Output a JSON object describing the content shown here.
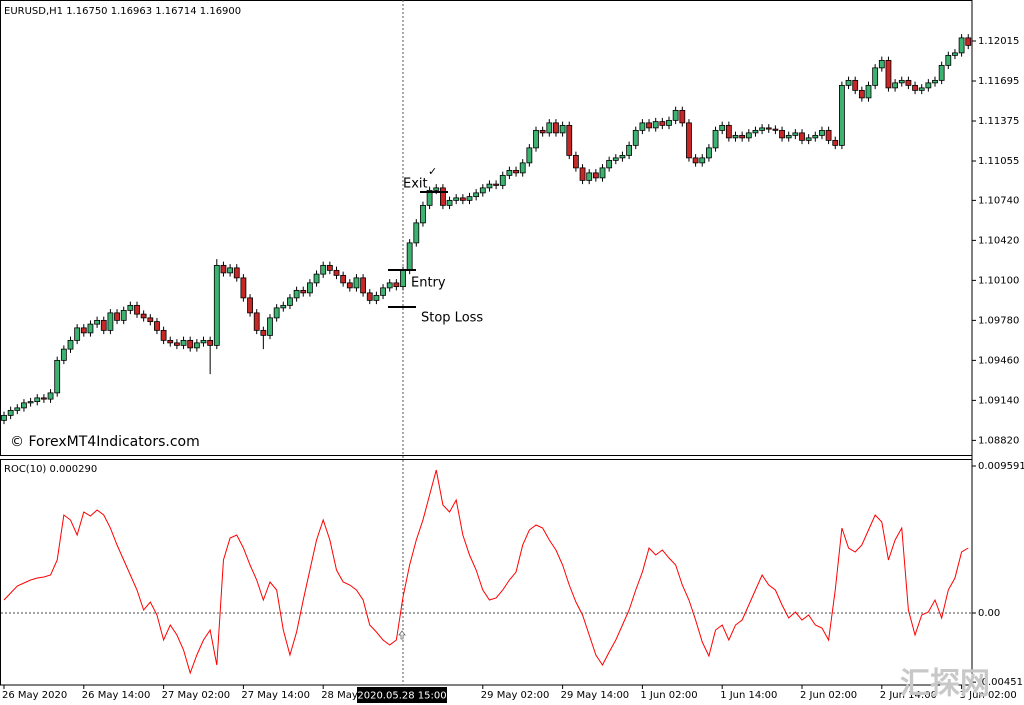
{
  "chart_data": [
    {
      "type": "candlestick",
      "title": "EURUSD,H1  1.16750 1.16963 1.16714 1.16900",
      "watermark": "© ForexMT4Indicators.com",
      "watermark2": "汇探网",
      "crosshair_label": "2020.05.28 15:00",
      "annotations": [
        "Exit",
        "✓",
        "Entry",
        "Stop Loss"
      ],
      "up_color": "#3cb371",
      "down_color": "#c62828",
      "ylim": [
        1.08703,
        1.12319
      ],
      "yticks": [
        1.12015,
        1.11695,
        1.11375,
        1.11055,
        {
          "value": 1.1074,
          "label": "1.10740"
        },
        {
          "value": 1.1042,
          "label": "1.10420"
        },
        {
          "value": 1.101,
          "label": "1.10100"
        },
        {
          "value": 1.0978,
          "label": "1.09780"
        },
        {
          "value": 1.0946,
          "label": "1.09460"
        },
        {
          "value": 1.0914,
          "label": "1.09140"
        },
        {
          "value": 1.0882,
          "label": "1.08820"
        }
      ],
      "categories": [
        "26 May 2020",
        null,
        null,
        null,
        null,
        null,
        null,
        null,
        null,
        null,
        null,
        null,
        "26 May 14:00",
        null,
        null,
        null,
        null,
        null,
        null,
        null,
        null,
        null,
        null,
        null,
        "27 May 02:00",
        null,
        null,
        null,
        null,
        null,
        null,
        null,
        null,
        null,
        null,
        null,
        "27 May 14:00",
        null,
        null,
        null,
        null,
        null,
        null,
        null,
        null,
        null,
        null,
        null,
        "28 May 02:00",
        null,
        null,
        null,
        null,
        null,
        null,
        null,
        null,
        null,
        null,
        null,
        null,
        null,
        null,
        null,
        null,
        null,
        null,
        null,
        null,
        null,
        null,
        null,
        "29 May 02:00",
        null,
        null,
        null,
        null,
        null,
        null,
        null,
        null,
        null,
        null,
        null,
        "29 May 14:00",
        null,
        null,
        null,
        null,
        null,
        null,
        null,
        null,
        null,
        null,
        null,
        "1 Jun 02:00",
        null,
        null,
        null,
        null,
        null,
        null,
        null,
        null,
        null,
        null,
        null,
        "1 Jun 14:00",
        null,
        null,
        null,
        null,
        null,
        null,
        null,
        null,
        null,
        null,
        null,
        "2 Jun 02:00",
        null,
        null,
        null,
        null,
        null,
        null,
        null,
        null,
        null,
        null,
        null,
        "2 Jun 14:00",
        null,
        null,
        null,
        null,
        null,
        null,
        null,
        null,
        null,
        null,
        null,
        "3 Jun 02:00",
        null
      ],
      "open": [
        1.0898,
        1.0902,
        1.0906,
        1.0908,
        1.0912,
        1.0913,
        1.0916,
        1.0915,
        1.092,
        1.0946,
        1.0955,
        1.0962,
        1.0972,
        1.0968,
        1.0975,
        1.0978,
        1.097,
        1.0984,
        1.0978,
        1.0986,
        1.099,
        1.0983,
        1.098,
        1.0977,
        1.097,
        1.0962,
        1.096,
        1.0958,
        1.0962,
        1.0956,
        1.096,
        1.0962,
        1.0958,
        1.1022,
        1.1016,
        1.102,
        1.1012,
        1.0996,
        1.0984,
        1.097,
        1.0966,
        1.098,
        1.0988,
        1.099,
        1.0996,
        1.1002,
        1.1,
        1.1008,
        1.1015,
        1.1022,
        1.1018,
        1.1014,
        1.1008,
        1.1004,
        1.1012,
        1.1,
        1.0994,
        1.0998,
        1.1004,
        1.1008,
        1.1005,
        1.1018,
        1.104,
        1.1056,
        1.107,
        1.1082,
        1.1084,
        1.107,
        1.1074,
        1.1076,
        1.1074,
        1.1077,
        1.108,
        1.1084,
        1.1087,
        1.1086,
        1.1094,
        1.1098,
        1.1096,
        1.1104,
        1.1116,
        1.113,
        1.1128,
        1.1136,
        1.1128,
        1.1134,
        1.111,
        1.11,
        1.109,
        1.1096,
        1.1092,
        1.11,
        1.1106,
        1.1108,
        1.111,
        1.1118,
        1.113,
        1.1136,
        1.1132,
        1.1137,
        1.1134,
        1.1138,
        1.1146,
        1.1136,
        1.1108,
        1.1104,
        1.1108,
        1.1116,
        1.113,
        1.1134,
        1.1124,
        1.1126,
        1.1124,
        1.1128,
        1.113,
        1.1132,
        1.1131,
        1.113,
        1.1124,
        1.1126,
        1.1128,
        1.1122,
        1.1124,
        1.1126,
        1.113,
        1.1122,
        1.1118,
        1.1166,
        1.117,
        1.1162,
        1.1156,
        1.1166,
        1.118,
        1.1186,
        1.1164,
        1.1168,
        1.117,
        1.1166,
        1.1162,
        1.1164,
        1.1168,
        1.117,
        1.1182,
        1.119,
        1.1192,
        1.1204
      ],
      "high": [
        1.0905,
        1.0909,
        1.0911,
        1.0915,
        1.0916,
        1.0919,
        1.0919,
        1.0923,
        1.0949,
        1.0958,
        1.0965,
        1.0975,
        1.0975,
        1.0978,
        1.0981,
        1.0981,
        1.0987,
        1.0987,
        1.0989,
        1.0993,
        1.0993,
        1.0986,
        1.0983,
        1.098,
        1.0973,
        1.0965,
        1.0963,
        1.0965,
        1.0965,
        1.0963,
        1.0965,
        1.0965,
        1.1027,
        1.1025,
        1.1023,
        1.1023,
        1.1015,
        1.0999,
        1.0987,
        1.0973,
        1.0983,
        1.0991,
        1.0993,
        1.0999,
        1.1005,
        1.1005,
        1.1011,
        1.1018,
        1.1025,
        1.1025,
        1.1021,
        1.1017,
        1.1011,
        1.1015,
        1.1015,
        1.1003,
        1.1001,
        1.1007,
        1.1011,
        1.1011,
        1.1021,
        1.1043,
        1.1059,
        1.1073,
        1.1085,
        1.1087,
        1.1087,
        1.1077,
        1.1079,
        1.1079,
        1.108,
        1.1083,
        1.1087,
        1.109,
        1.109,
        1.1097,
        1.1101,
        1.1101,
        1.1107,
        1.1119,
        1.1133,
        1.1133,
        1.1139,
        1.1139,
        1.1137,
        1.1137,
        1.1113,
        1.1103,
        1.1099,
        1.1099,
        1.1103,
        1.1109,
        1.1111,
        1.1113,
        1.1121,
        1.1133,
        1.1139,
        1.1139,
        1.114,
        1.114,
        1.1141,
        1.1149,
        1.1149,
        1.1139,
        1.1111,
        1.1111,
        1.1119,
        1.1133,
        1.1137,
        1.1137,
        1.1129,
        1.1129,
        1.1131,
        1.1133,
        1.1135,
        1.1135,
        1.1134,
        1.1133,
        1.1129,
        1.1131,
        1.1131,
        1.1127,
        1.1129,
        1.1133,
        1.1133,
        1.1125,
        1.1169,
        1.1173,
        1.1173,
        1.1165,
        1.1169,
        1.1183,
        1.1189,
        1.1189,
        1.1171,
        1.1173,
        1.1173,
        1.1169,
        1.1167,
        1.1171,
        1.1173,
        1.1185,
        1.1193,
        1.1195,
        1.1207,
        1.1207
      ],
      "low": [
        1.0895,
        1.0899,
        1.0903,
        1.0905,
        1.0909,
        1.091,
        1.0912,
        1.0912,
        1.0917,
        1.0943,
        1.0952,
        1.0959,
        1.0965,
        1.0965,
        1.0972,
        1.0967,
        1.0967,
        1.0975,
        1.0975,
        1.0983,
        1.098,
        1.0977,
        1.0974,
        1.0967,
        1.0959,
        1.0957,
        1.0955,
        1.0955,
        1.0953,
        1.0953,
        1.0957,
        1.0935,
        1.0955,
        1.1013,
        1.1013,
        1.1009,
        1.0993,
        1.0981,
        1.0967,
        1.0955,
        1.0963,
        1.0977,
        1.0985,
        1.0987,
        1.0993,
        1.0997,
        1.0997,
        1.1005,
        1.1012,
        1.1015,
        1.1011,
        1.1005,
        1.1001,
        1.1001,
        1.0997,
        1.0991,
        1.0991,
        1.0995,
        1.1001,
        1.1002,
        1.1002,
        1.1015,
        1.1037,
        1.1053,
        1.1067,
        1.1079,
        1.1067,
        1.1067,
        1.1071,
        1.1071,
        1.1071,
        1.1074,
        1.1077,
        1.1081,
        1.1083,
        1.1083,
        1.1091,
        1.1093,
        1.1093,
        1.1101,
        1.1113,
        1.1125,
        1.1125,
        1.1125,
        1.1125,
        1.1107,
        1.1097,
        1.1087,
        1.1087,
        1.1089,
        1.1089,
        1.1097,
        1.1103,
        1.1105,
        1.1107,
        1.1115,
        1.1127,
        1.1129,
        1.1129,
        1.1131,
        1.1131,
        1.1135,
        1.1133,
        1.1105,
        1.1101,
        1.1101,
        1.1105,
        1.1113,
        1.1127,
        1.1121,
        1.1121,
        1.1121,
        1.1121,
        1.1125,
        1.1127,
        1.1128,
        1.1127,
        1.1121,
        1.1121,
        1.1123,
        1.1119,
        1.1119,
        1.1121,
        1.1123,
        1.1119,
        1.1115,
        1.1115,
        1.1163,
        1.1159,
        1.1153,
        1.1153,
        1.1163,
        1.1177,
        1.1161,
        1.1161,
        1.1165,
        1.1163,
        1.1159,
        1.1159,
        1.1161,
        1.1165,
        1.1167,
        1.1179,
        1.1187,
        1.1189,
        1.1195
      ],
      "close": [
        1.0902,
        1.0906,
        1.0908,
        1.0912,
        1.0913,
        1.0916,
        1.0915,
        1.092,
        1.0946,
        1.0955,
        1.0962,
        1.0972,
        1.0968,
        1.0975,
        1.0978,
        1.097,
        1.0984,
        1.0978,
        1.0986,
        1.099,
        1.0983,
        1.098,
        1.0977,
        1.097,
        1.0962,
        1.096,
        1.0958,
        1.0962,
        1.0956,
        1.096,
        1.0962,
        1.0958,
        1.1022,
        1.1016,
        1.102,
        1.1012,
        1.0996,
        1.0984,
        1.097,
        1.0966,
        1.098,
        1.0988,
        1.099,
        1.0996,
        1.1002,
        1.1,
        1.1008,
        1.1015,
        1.1022,
        1.1018,
        1.1014,
        1.1008,
        1.1004,
        1.1012,
        1.1,
        1.0994,
        1.0998,
        1.1004,
        1.1008,
        1.1005,
        1.1018,
        1.104,
        1.1056,
        1.107,
        1.1082,
        1.1084,
        1.107,
        1.1074,
        1.1076,
        1.1074,
        1.1077,
        1.108,
        1.1084,
        1.1087,
        1.1086,
        1.1094,
        1.1098,
        1.1096,
        1.1104,
        1.1116,
        1.113,
        1.1128,
        1.1136,
        1.1128,
        1.1134,
        1.111,
        1.11,
        1.109,
        1.1096,
        1.1092,
        1.11,
        1.1106,
        1.1108,
        1.111,
        1.1118,
        1.113,
        1.1136,
        1.1132,
        1.1137,
        1.1134,
        1.1138,
        1.1146,
        1.1136,
        1.1108,
        1.1104,
        1.1108,
        1.1116,
        1.113,
        1.1134,
        1.1124,
        1.1126,
        1.1124,
        1.1128,
        1.113,
        1.1132,
        1.1131,
        1.113,
        1.1124,
        1.1126,
        1.1128,
        1.1122,
        1.1124,
        1.1126,
        1.113,
        1.1122,
        1.1118,
        1.1166,
        1.117,
        1.1162,
        1.1156,
        1.1166,
        1.118,
        1.1186,
        1.1164,
        1.1168,
        1.117,
        1.1166,
        1.1162,
        1.1164,
        1.1168,
        1.117,
        1.1182,
        1.119,
        1.1192,
        1.1204,
        1.1198
      ]
    },
    {
      "type": "line",
      "title": "ROC(10) 0.000290",
      "color": "#ff0000",
      "ylim": [
        -0.004697,
        0.009852
      ],
      "yticks": [
        0.009591,
        {
          "value": 0,
          "label": "0.00"
        },
        -0.004511
      ],
      "levels": [
        0
      ],
      "values": [
        0.000848,
        0.001305,
        0.001761,
        0.001957,
        0.002153,
        0.002283,
        0.002349,
        0.002479,
        0.003458,
        0.006394,
        0.006067,
        0.005089,
        0.006589,
        0.006328,
        0.00672,
        0.006394,
        0.005545,
        0.004436,
        0.003458,
        0.002479,
        0.001501,
        0.000196,
        0.000718,
        -0.00013,
        -0.001761,
        -0.000783,
        -0.001435,
        -0.002414,
        -0.003914,
        -0.00274,
        -0.001761,
        -0.001109,
        -0.003392,
        0.003458,
        0.004893,
        0.005089,
        0.004241,
        0.003132,
        0.002153,
        0.000848,
        0.002022,
        0.001501,
        -0.001109,
        -0.00274,
        -0.00124,
        0.000848,
        0.002805,
        0.004763,
        0.006067,
        0.004763,
        0.002805,
        0.002022,
        0.001827,
        0.001501,
        0.000848,
        -0.000783,
        -0.00124,
        -0.001761,
        -0.002088,
        -0.001761,
        0.001044,
        0.003132,
        0.004763,
        0.006067,
        0.007698,
        0.009329,
        0.007046,
        0.006589,
        0.007372,
        0.005089,
        0.003784,
        0.002805,
        0.001501,
        0.000848,
        0.000979,
        0.001501,
        0.002153,
        0.002675,
        0.004436,
        0.005415,
        0.005741,
        0.005545,
        0.004763,
        0.00411,
        0.003132,
        0.001827,
        0.000718,
        -0.00013,
        -0.001435,
        -0.00274,
        -0.003392,
        -0.002544,
        -0.001761,
        -0.000783,
        0.000196,
        0.001501,
        0.002675,
        0.004241,
        0.003784,
        0.00411,
        0.003588,
        0.003132,
        0.001827,
        0.000848,
        -0.000457,
        -0.001892,
        -0.002805,
        -0.001109,
        -0.000783,
        -0.001761,
        -0.000783,
        -0.000457,
        0.000522,
        0.001501,
        0.002479,
        0.001827,
        0.001501,
        0.000522,
        -0.000326,
        6.5e-05,
        -0.000457,
        -0.00013,
        -0.000783,
        -0.000979,
        -0.001761,
        0.001501,
        0.005545,
        0.004241,
        0.00398,
        0.004436,
        0.005415,
        0.006394,
        0.005937,
        0.003458,
        0.004763,
        0.005545,
        0.000196,
        -0.001435,
        -0.00013,
        6.5e-05,
        0.000848,
        -0.000326,
        0.001501,
        0.002283,
        0.00398,
        0.004241
      ]
    }
  ]
}
